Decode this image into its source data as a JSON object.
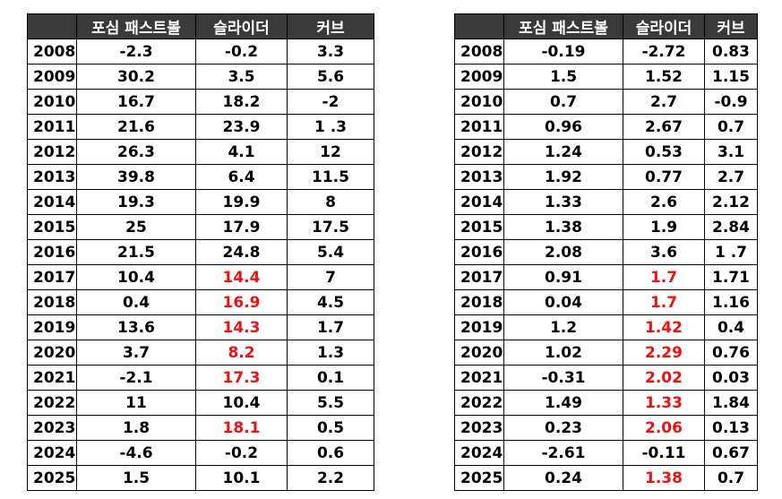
{
  "colors": {
    "header_bg": "#3a3a3a",
    "header_text": "#ffffff",
    "highlight": "#ee1111"
  },
  "tables": [
    {
      "headers": [
        "",
        "포심 패스트볼",
        "슬라이더",
        "커브"
      ],
      "rows": [
        {
          "year": "2008",
          "fastball": "-2.3",
          "slider": "-0.2",
          "curve": "3.3"
        },
        {
          "year": "2009",
          "fastball": "30.2",
          "slider": "3.5",
          "curve": "5.6"
        },
        {
          "year": "2010",
          "fastball": "16.7",
          "slider": "18.2",
          "curve": "-2"
        },
        {
          "year": "2011",
          "fastball": "21.6",
          "slider": "23.9",
          "curve": "1 .3"
        },
        {
          "year": "2012",
          "fastball": "26.3",
          "slider": "4.1",
          "curve": "12"
        },
        {
          "year": "2013",
          "fastball": "39.8",
          "slider": "6.4",
          "curve": "11.5"
        },
        {
          "year": "2014",
          "fastball": "19.3",
          "slider": "19.9",
          "curve": "8"
        },
        {
          "year": "2015",
          "fastball": "25",
          "slider": "17.9",
          "curve": "17.5"
        },
        {
          "year": "2016",
          "fastball": "21.5",
          "slider": "24.8",
          "curve": "5.4"
        },
        {
          "year": "2017",
          "fastball": "10.4",
          "slider": "14.4",
          "curve": "7",
          "slider_red": true
        },
        {
          "year": "2018",
          "fastball": "0.4",
          "slider": "16.9",
          "curve": "4.5",
          "slider_red": true
        },
        {
          "year": "2019",
          "fastball": "13.6",
          "slider": "14.3",
          "curve": "1.7",
          "slider_red": true
        },
        {
          "year": "2020",
          "fastball": "3.7",
          "slider": "8.2",
          "curve": "1.3",
          "slider_red": true
        },
        {
          "year": "2021",
          "fastball": "-2.1",
          "slider": "17.3",
          "curve": "0.1",
          "slider_red": true
        },
        {
          "year": "2022",
          "fastball": "11",
          "slider": "10.4",
          "curve": "5.5"
        },
        {
          "year": "2023",
          "fastball": "1.8",
          "slider": "18.1",
          "curve": "0.5",
          "slider_red": true
        },
        {
          "year": "2024",
          "fastball": "-4.6",
          "slider": "-0.2",
          "curve": "0.6"
        },
        {
          "year": "2025",
          "fastball": "1.5",
          "slider": "10.1",
          "curve": "2.2"
        }
      ]
    },
    {
      "headers": [
        "",
        "포심 패스트볼",
        "슬라이더",
        "커브"
      ],
      "rows": [
        {
          "year": "2008",
          "fastball": "-0.19",
          "slider": "-2.72",
          "curve": "0.83"
        },
        {
          "year": "2009",
          "fastball": "1.5",
          "slider": "1.52",
          "curve": "1.15"
        },
        {
          "year": "2010",
          "fastball": "0.7",
          "slider": "2.7",
          "curve": "-0.9"
        },
        {
          "year": "2011",
          "fastball": "0.96",
          "slider": "2.67",
          "curve": "0.7"
        },
        {
          "year": "2012",
          "fastball": "1.24",
          "slider": "0.53",
          "curve": "3.1"
        },
        {
          "year": "2013",
          "fastball": "1.92",
          "slider": "0.77",
          "curve": "2.7"
        },
        {
          "year": "2014",
          "fastball": "1.33",
          "slider": "2.6",
          "curve": "2.12"
        },
        {
          "year": "2015",
          "fastball": "1.38",
          "slider": "1.9",
          "curve": "2.84"
        },
        {
          "year": "2016",
          "fastball": "2.08",
          "slider": "3.6",
          "curve": "1 .7"
        },
        {
          "year": "2017",
          "fastball": "0.91",
          "slider": "1.7",
          "curve": "1.71",
          "slider_red": true
        },
        {
          "year": "2018",
          "fastball": "0.04",
          "slider": "1.7",
          "curve": "1.16",
          "slider_red": true
        },
        {
          "year": "2019",
          "fastball": "1.2",
          "slider": "1.42",
          "curve": "0.4",
          "slider_red": true
        },
        {
          "year": "2020",
          "fastball": "1.02",
          "slider": "2.29",
          "curve": "0.76",
          "slider_red": true
        },
        {
          "year": "2021",
          "fastball": "-0.31",
          "slider": "2.02",
          "curve": "0.03",
          "slider_red": true
        },
        {
          "year": "2022",
          "fastball": "1.49",
          "slider": "1.33",
          "curve": "1.84",
          "slider_red": true
        },
        {
          "year": "2023",
          "fastball": "0.23",
          "slider": "2.06",
          "curve": "0.13",
          "slider_red": true
        },
        {
          "year": "2024",
          "fastball": "-2.61",
          "slider": "-0.11",
          "curve": "0.67"
        },
        {
          "year": "2025",
          "fastball": "0.24",
          "slider": "1.38",
          "curve": "0.7",
          "slider_red": true
        }
      ]
    }
  ]
}
